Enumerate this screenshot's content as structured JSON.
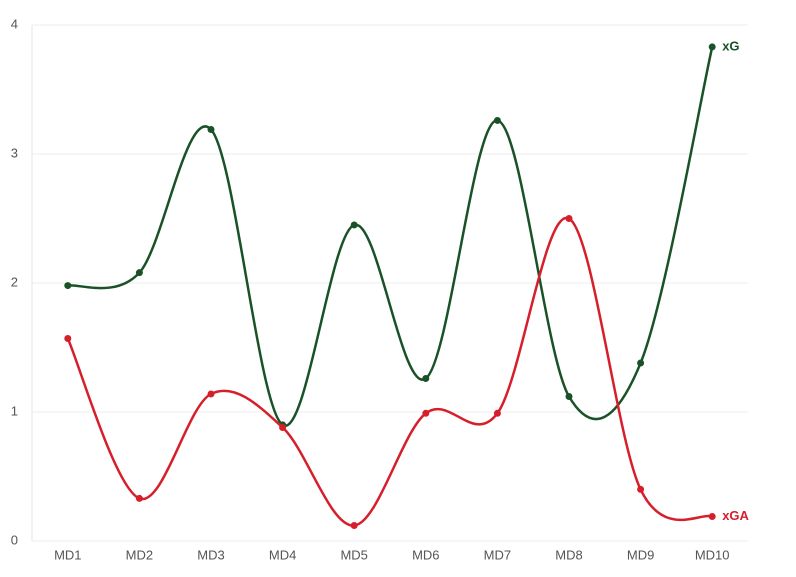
{
  "chart_data": {
    "type": "line",
    "categories": [
      "MD1",
      "MD2",
      "MD3",
      "MD4",
      "MD5",
      "MD6",
      "MD7",
      "MD8",
      "MD9",
      "MD10"
    ],
    "series": [
      {
        "name": "xG",
        "color": "#1a5228",
        "values": [
          1.98,
          2.08,
          3.19,
          0.9,
          2.45,
          1.26,
          3.26,
          1.12,
          1.38,
          3.83
        ]
      },
      {
        "name": "xGA",
        "color": "#d61f2b",
        "values": [
          1.57,
          0.33,
          1.14,
          0.88,
          0.12,
          0.99,
          0.99,
          2.5,
          0.4,
          0.19
        ]
      }
    ],
    "ylim": [
      0,
      4
    ],
    "yticks": [
      0,
      1,
      2,
      3,
      4
    ],
    "grid": true,
    "smooth": true
  }
}
